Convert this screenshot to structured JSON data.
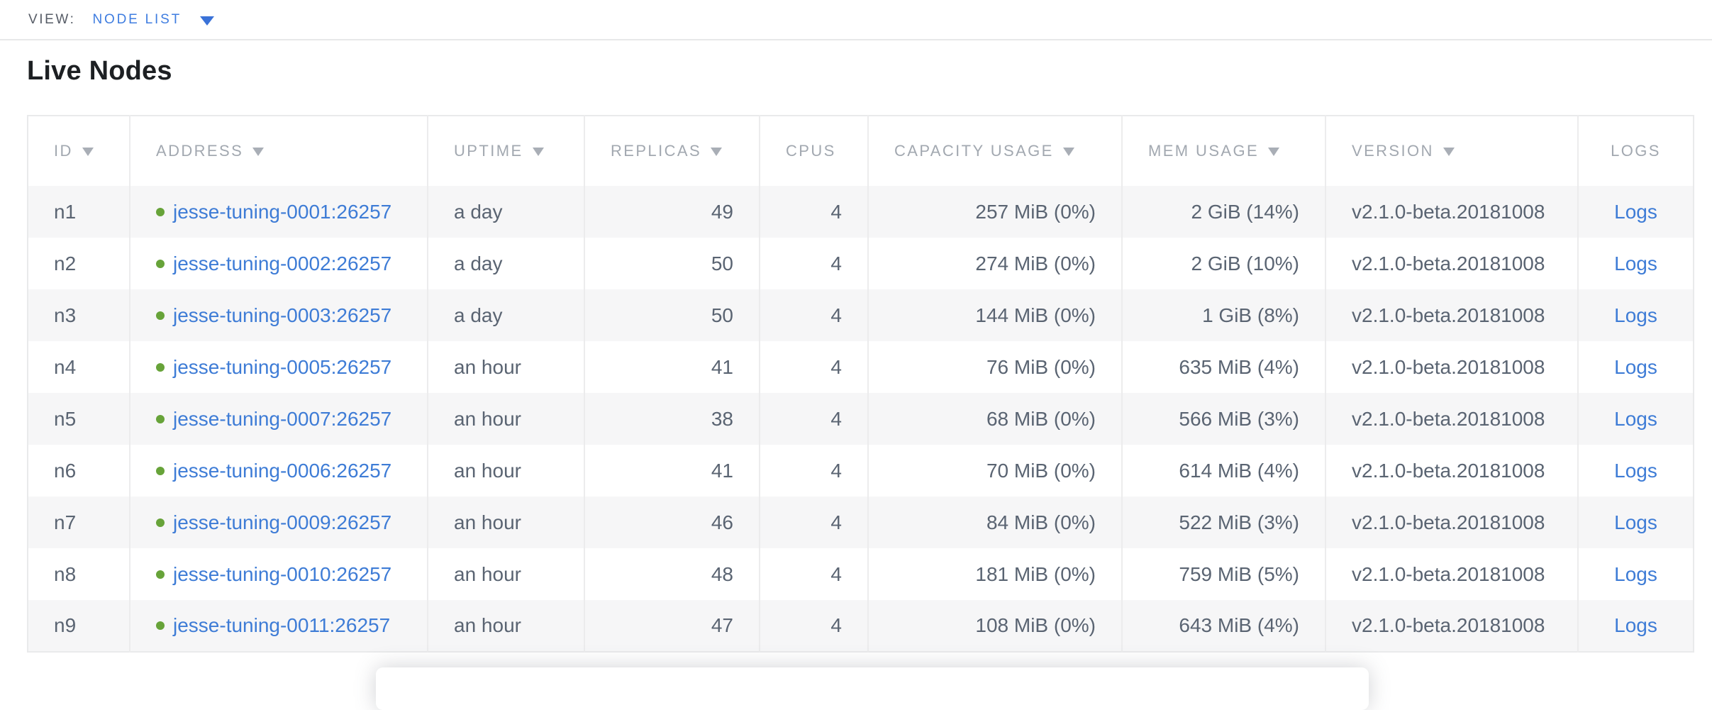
{
  "view_bar": {
    "label": "VIEW:",
    "selected": "NODE LIST",
    "dropdown_icon": "caret-down"
  },
  "page": {
    "title": "Live Nodes"
  },
  "icons": {
    "sort_indicator": "caret-down",
    "node_status": "green-dot"
  },
  "colors": {
    "link_blue": "#3e7cd6",
    "view_accent_blue": "#3f7de0",
    "status_green": "#67a339",
    "header_gray": "#a2a8b0",
    "body_text": "#5a6472",
    "row_stripe": "#f6f6f7",
    "border": "#e9eaeb"
  },
  "table": {
    "columns": [
      {
        "label": "ID",
        "sortable": true
      },
      {
        "label": "ADDRESS",
        "sortable": true
      },
      {
        "label": "UPTIME",
        "sortable": true
      },
      {
        "label": "REPLICAS",
        "sortable": true
      },
      {
        "label": "CPUS",
        "sortable": false
      },
      {
        "label": "CAPACITY USAGE",
        "sortable": true
      },
      {
        "label": "MEM USAGE",
        "sortable": true
      },
      {
        "label": "VERSION",
        "sortable": true
      },
      {
        "label": "LOGS",
        "sortable": false
      }
    ],
    "rows": [
      {
        "id": "n1",
        "address": "jesse-tuning-0001:26257",
        "status": "live",
        "uptime": "a day",
        "replicas": "49",
        "cpus": "4",
        "capacity": "257 MiB (0%)",
        "mem": "2 GiB (14%)",
        "version": "v2.1.0-beta.20181008",
        "logs": "Logs"
      },
      {
        "id": "n2",
        "address": "jesse-tuning-0002:26257",
        "status": "live",
        "uptime": "a day",
        "replicas": "50",
        "cpus": "4",
        "capacity": "274 MiB (0%)",
        "mem": "2 GiB (10%)",
        "version": "v2.1.0-beta.20181008",
        "logs": "Logs"
      },
      {
        "id": "n3",
        "address": "jesse-tuning-0003:26257",
        "status": "live",
        "uptime": "a day",
        "replicas": "50",
        "cpus": "4",
        "capacity": "144 MiB (0%)",
        "mem": "1 GiB (8%)",
        "version": "v2.1.0-beta.20181008",
        "logs": "Logs"
      },
      {
        "id": "n4",
        "address": "jesse-tuning-0005:26257",
        "status": "live",
        "uptime": "an hour",
        "replicas": "41",
        "cpus": "4",
        "capacity": "76 MiB (0%)",
        "mem": "635 MiB (4%)",
        "version": "v2.1.0-beta.20181008",
        "logs": "Logs"
      },
      {
        "id": "n5",
        "address": "jesse-tuning-0007:26257",
        "status": "live",
        "uptime": "an hour",
        "replicas": "38",
        "cpus": "4",
        "capacity": "68 MiB (0%)",
        "mem": "566 MiB (3%)",
        "version": "v2.1.0-beta.20181008",
        "logs": "Logs"
      },
      {
        "id": "n6",
        "address": "jesse-tuning-0006:26257",
        "status": "live",
        "uptime": "an hour",
        "replicas": "41",
        "cpus": "4",
        "capacity": "70 MiB (0%)",
        "mem": "614 MiB (4%)",
        "version": "v2.1.0-beta.20181008",
        "logs": "Logs"
      },
      {
        "id": "n7",
        "address": "jesse-tuning-0009:26257",
        "status": "live",
        "uptime": "an hour",
        "replicas": "46",
        "cpus": "4",
        "capacity": "84 MiB (0%)",
        "mem": "522 MiB (3%)",
        "version": "v2.1.0-beta.20181008",
        "logs": "Logs"
      },
      {
        "id": "n8",
        "address": "jesse-tuning-0010:26257",
        "status": "live",
        "uptime": "an hour",
        "replicas": "48",
        "cpus": "4",
        "capacity": "181 MiB (0%)",
        "mem": "759 MiB (5%)",
        "version": "v2.1.0-beta.20181008",
        "logs": "Logs"
      },
      {
        "id": "n9",
        "address": "jesse-tuning-0011:26257",
        "status": "live",
        "uptime": "an hour",
        "replicas": "47",
        "cpus": "4",
        "capacity": "108 MiB (0%)",
        "mem": "643 MiB (4%)",
        "version": "v2.1.0-beta.20181008",
        "logs": "Logs"
      }
    ]
  }
}
